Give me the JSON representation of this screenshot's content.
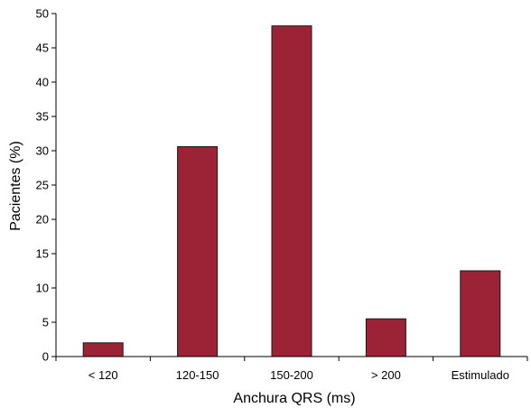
{
  "chart_data": {
    "type": "bar",
    "title": "",
    "xlabel": "Anchura QRS (ms)",
    "ylabel": "Pacientes (%)",
    "categories": [
      "< 120",
      "120-150",
      "150-200",
      "> 200",
      "Estimulado"
    ],
    "values": [
      2,
      30.6,
      48.2,
      5.5,
      12.5
    ],
    "ylim": [
      0,
      50
    ],
    "yticks": [
      0,
      5,
      10,
      15,
      20,
      25,
      30,
      35,
      40,
      45,
      50
    ],
    "grid": false,
    "legend": "none",
    "bar_color": "#9b2335",
    "bar_edge_color": "#1a1a1a"
  }
}
